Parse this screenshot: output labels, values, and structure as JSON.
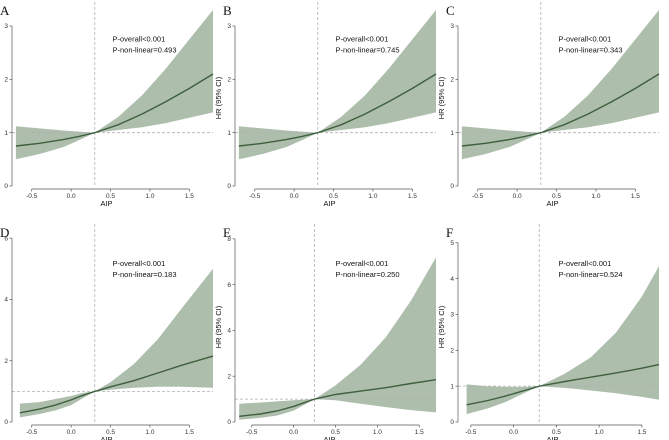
{
  "chart_data": [
    {
      "type": "line",
      "panel": "A",
      "xlabel": "AIP",
      "ylabel": "HR (95% CI)",
      "xlim": [
        -0.75,
        1.8
      ],
      "ylim": [
        0,
        3.3
      ],
      "xticks": [
        -0.5,
        0.0,
        0.5,
        1.0,
        1.5
      ],
      "yticks": [
        0,
        1,
        2,
        3
      ],
      "ref_x": 0.3,
      "ref_y": 1,
      "annotations": [
        "P-overall<0.001",
        "P-non-linear=0.493"
      ],
      "x": [
        -0.7,
        -0.4,
        -0.1,
        0.1,
        0.3,
        0.6,
        0.9,
        1.2,
        1.5,
        1.8
      ],
      "hr": [
        0.75,
        0.8,
        0.87,
        0.93,
        1.0,
        1.15,
        1.35,
        1.58,
        1.83,
        2.1
      ],
      "lower": [
        0.5,
        0.6,
        0.73,
        0.86,
        1.0,
        1.05,
        1.1,
        1.18,
        1.28,
        1.38
      ],
      "upper": [
        1.12,
        1.08,
        1.04,
        1.02,
        1.0,
        1.3,
        1.7,
        2.2,
        2.75,
        3.3
      ]
    },
    {
      "type": "line",
      "panel": "B",
      "xlabel": "AIP",
      "ylabel": "HR (95% CI)",
      "xlim": [
        -0.75,
        1.8
      ],
      "ylim": [
        0,
        3.3
      ],
      "xticks": [
        -0.5,
        0.0,
        0.5,
        1.0,
        1.5
      ],
      "yticks": [
        0,
        1,
        2,
        3
      ],
      "ref_x": 0.3,
      "ref_y": 1,
      "annotations": [
        "P-overall<0.001",
        "P-non-linear=0.745"
      ],
      "x": [
        -0.7,
        -0.4,
        -0.1,
        0.1,
        0.3,
        0.6,
        0.9,
        1.2,
        1.5,
        1.8
      ],
      "hr": [
        0.75,
        0.8,
        0.87,
        0.93,
        1.0,
        1.15,
        1.35,
        1.58,
        1.83,
        2.1
      ],
      "lower": [
        0.5,
        0.6,
        0.73,
        0.86,
        1.0,
        1.05,
        1.1,
        1.18,
        1.28,
        1.38
      ],
      "upper": [
        1.12,
        1.08,
        1.04,
        1.02,
        1.0,
        1.3,
        1.7,
        2.2,
        2.75,
        3.3
      ]
    },
    {
      "type": "line",
      "panel": "C",
      "xlabel": "AIP",
      "ylabel": "HR (95% CI)",
      "xlim": [
        -0.75,
        1.8
      ],
      "ylim": [
        0,
        3.3
      ],
      "xticks": [
        -0.5,
        0.0,
        0.5,
        1.0,
        1.5
      ],
      "yticks": [
        0,
        1,
        2,
        3
      ],
      "ref_x": 0.3,
      "ref_y": 1,
      "annotations": [
        "P-overall<0.001",
        "P-non-linear=0.343"
      ],
      "x": [
        -0.7,
        -0.4,
        -0.1,
        0.1,
        0.3,
        0.6,
        0.9,
        1.2,
        1.5,
        1.8
      ],
      "hr": [
        0.75,
        0.8,
        0.87,
        0.93,
        1.0,
        1.15,
        1.35,
        1.58,
        1.83,
        2.1
      ],
      "lower": [
        0.5,
        0.6,
        0.73,
        0.86,
        1.0,
        1.05,
        1.1,
        1.18,
        1.28,
        1.38
      ],
      "upper": [
        1.12,
        1.08,
        1.04,
        1.02,
        1.0,
        1.3,
        1.7,
        2.2,
        2.75,
        3.3
      ]
    },
    {
      "type": "line",
      "panel": "D",
      "xlabel": "AIP",
      "ylabel": "HR (95% CI)",
      "xlim": [
        -0.75,
        1.8
      ],
      "ylim": [
        0,
        6.2
      ],
      "xticks": [
        -0.5,
        0.0,
        0.5,
        1.0,
        1.5
      ],
      "yticks": [
        0,
        2,
        4,
        6
      ],
      "ref_x": 0.3,
      "ref_y": 1,
      "annotations": [
        "P-overall<0.001",
        "P-non-linear=0.183"
      ],
      "x": [
        -0.65,
        -0.4,
        -0.2,
        0.0,
        0.15,
        0.3,
        0.5,
        0.8,
        1.1,
        1.4,
        1.8
      ],
      "hr": [
        0.3,
        0.42,
        0.55,
        0.72,
        0.87,
        1.0,
        1.15,
        1.35,
        1.6,
        1.85,
        2.15
      ],
      "lower": [
        0.15,
        0.26,
        0.38,
        0.55,
        0.78,
        1.0,
        1.05,
        1.12,
        1.15,
        1.15,
        1.12
      ],
      "upper": [
        0.6,
        0.65,
        0.75,
        0.85,
        0.95,
        1.0,
        1.3,
        1.9,
        2.7,
        3.7,
        5.0
      ]
    },
    {
      "type": "line",
      "panel": "E",
      "xlabel": "AIP",
      "ylabel": "HR (95% CI)",
      "xlim": [
        -0.7,
        1.7
      ],
      "ylim": [
        0,
        8.3
      ],
      "xticks": [
        -0.5,
        0.0,
        0.5,
        1.0,
        1.5
      ],
      "yticks": [
        0,
        2,
        4,
        6,
        8
      ],
      "ref_x": 0.25,
      "ref_y": 1,
      "annotations": [
        "P-overall<0.001",
        "P-non-linear=0.250"
      ],
      "x": [
        -0.65,
        -0.4,
        -0.2,
        0.0,
        0.25,
        0.5,
        0.8,
        1.1,
        1.4,
        1.7
      ],
      "hr": [
        0.25,
        0.35,
        0.48,
        0.68,
        1.0,
        1.2,
        1.35,
        1.5,
        1.68,
        1.85
      ],
      "lower": [
        0.1,
        0.18,
        0.28,
        0.5,
        1.0,
        0.95,
        0.8,
        0.65,
        0.52,
        0.42
      ],
      "upper": [
        0.8,
        0.85,
        0.9,
        0.95,
        1.0,
        1.6,
        2.5,
        3.7,
        5.3,
        7.2
      ]
    },
    {
      "type": "line",
      "panel": "F",
      "xlabel": "AIP",
      "ylabel": "HR (95% CI)",
      "xlim": [
        -0.65,
        1.7
      ],
      "ylim": [
        0,
        5.3
      ],
      "xticks": [
        -0.5,
        0.0,
        0.5,
        1.0,
        1.5
      ],
      "yticks": [
        0,
        1,
        2,
        3,
        4,
        5
      ],
      "ref_x": 0.3,
      "ref_y": 1,
      "annotations": [
        "P-overall<0.001",
        "P-non-linear=0.524"
      ],
      "x": [
        -0.55,
        -0.3,
        -0.1,
        0.1,
        0.3,
        0.6,
        0.9,
        1.2,
        1.5,
        1.7
      ],
      "hr": [
        0.48,
        0.6,
        0.72,
        0.86,
        1.0,
        1.13,
        1.25,
        1.37,
        1.5,
        1.6
      ],
      "lower": [
        0.22,
        0.38,
        0.55,
        0.78,
        1.0,
        0.95,
        0.88,
        0.8,
        0.7,
        0.62
      ],
      "upper": [
        1.05,
        1.0,
        0.98,
        0.98,
        1.0,
        1.35,
        1.8,
        2.5,
        3.5,
        4.35
      ]
    }
  ],
  "colors": {
    "band": "#a9bba9",
    "line": "#3f5f3f",
    "reference": "#b0b0b0",
    "axis": "#555555"
  }
}
